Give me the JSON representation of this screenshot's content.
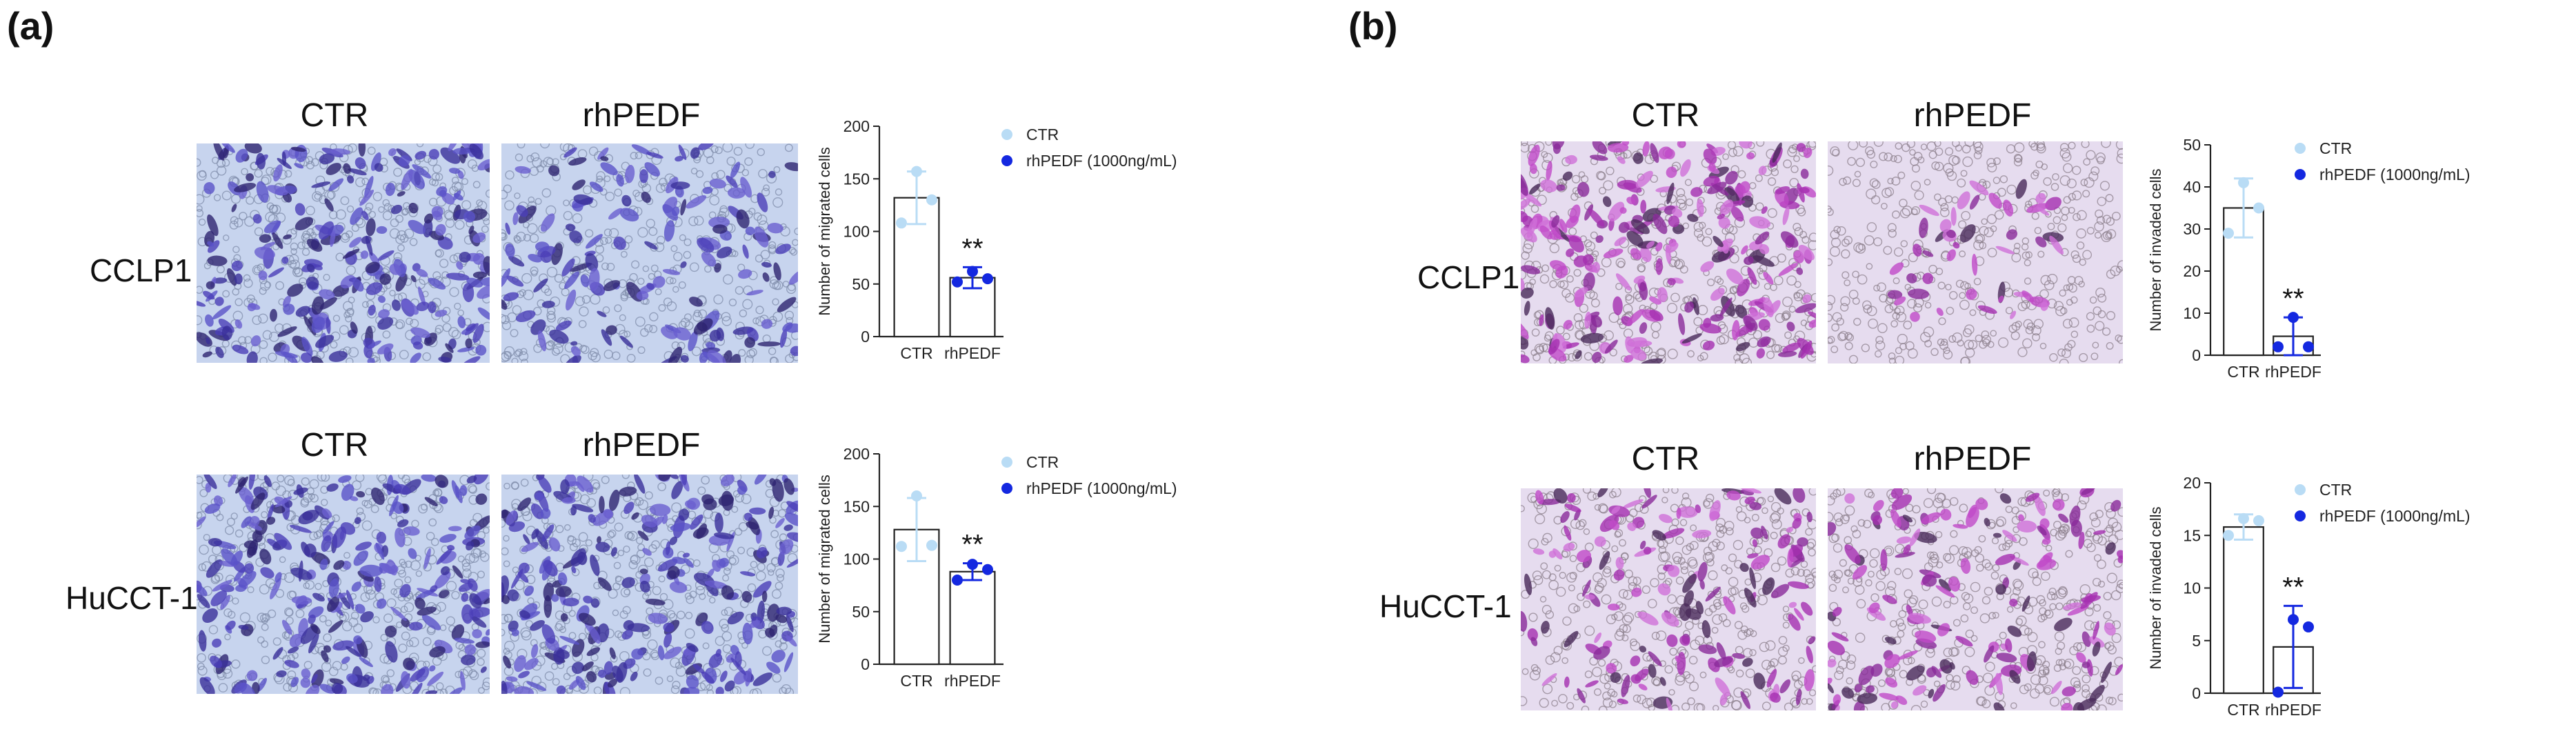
{
  "panels": [
    {
      "letter": "(a)",
      "col_headers": [
        "CTR",
        "rhPEDF"
      ],
      "rows": [
        {
          "label": "CCLP1",
          "col_headers": [
            "CTR",
            "rhPEDF"
          ]
        },
        {
          "label": "HuCCT-1",
          "col_headers": [
            "CTR",
            "rhPEDF"
          ]
        }
      ]
    },
    {
      "letter": "(b)",
      "rows": [
        {
          "label": "CCLP1",
          "col_headers": [
            "CTR",
            "rhPEDF"
          ]
        },
        {
          "label": "HuCCT-1",
          "col_headers": [
            "CTR",
            "rhPEDF"
          ]
        }
      ]
    }
  ],
  "colors": {
    "ctr": "#b9dcf5",
    "treat": "#1428e0",
    "bar_stroke": "#222222",
    "stain_migration": "#5a52c8",
    "stain_invasion": "#b03cb4"
  },
  "chart_data": [
    {
      "type": "bar",
      "id": "a_cclp1",
      "categories": [
        "CTR",
        "rhPEDF"
      ],
      "values": [
        132,
        56
      ],
      "errors": [
        25,
        10
      ],
      "points": [
        [
          157,
          130,
          108
        ],
        [
          62,
          55,
          52
        ]
      ],
      "ylabel": "Number of migrated cells",
      "ylim": [
        0,
        200
      ],
      "yticks": [
        0,
        50,
        100,
        150,
        200
      ],
      "legend": [
        "CTR",
        "rhPEDF (1000ng/mL)"
      ],
      "annotation": "**"
    },
    {
      "type": "bar",
      "id": "a_hucct1",
      "categories": [
        "CTR",
        "rhPEDF"
      ],
      "values": [
        128,
        88
      ],
      "errors": [
        30,
        8
      ],
      "points": [
        [
          160,
          113,
          112
        ],
        [
          95,
          90,
          80
        ]
      ],
      "ylabel": "Number of migrated cells",
      "ylim": [
        0,
        200
      ],
      "yticks": [
        0,
        50,
        100,
        150,
        200
      ],
      "legend": [
        "CTR",
        "rhPEDF (1000ng/mL)"
      ],
      "annotation": "**"
    },
    {
      "type": "bar",
      "id": "b_cclp1",
      "categories": [
        "CTR",
        "rhPEDF"
      ],
      "values": [
        35,
        4.5
      ],
      "errors": [
        7,
        4.5
      ],
      "points": [
        [
          41,
          35,
          29
        ],
        [
          9,
          2,
          2
        ]
      ],
      "ylabel": "Number of invaded cells",
      "ylim": [
        0,
        50
      ],
      "yticks": [
        0,
        10,
        20,
        30,
        40,
        50
      ],
      "legend": [
        "CTR",
        "rhPEDF (1000ng/mL)"
      ],
      "annotation": "**"
    },
    {
      "type": "bar",
      "id": "b_hucct1",
      "categories": [
        "CTR",
        "rhPEDF"
      ],
      "values": [
        15.8,
        4.4
      ],
      "errors": [
        1.2,
        3.9
      ],
      "points": [
        [
          16.6,
          16.4,
          15.0
        ],
        [
          7.0,
          6.3,
          0.1
        ]
      ],
      "ylabel": "Number of invaded cells",
      "ylim": [
        0,
        20
      ],
      "yticks": [
        0,
        5,
        10,
        15,
        20
      ],
      "legend": [
        "CTR",
        "rhPEDF (1000ng/mL)"
      ],
      "annotation": "**"
    }
  ]
}
